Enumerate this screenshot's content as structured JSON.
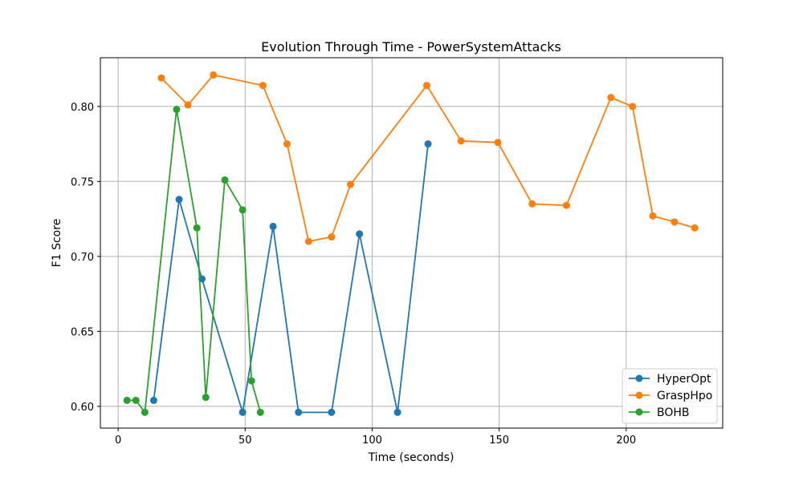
{
  "chart_data": {
    "type": "line",
    "title": "Evolution Through Time - PowerSystemAttacks",
    "xlabel": "Time (seconds)",
    "ylabel": "F1 Score",
    "xlim": [
      -7,
      238
    ],
    "ylim": [
      0.5855,
      0.8325
    ],
    "xticks": [
      0,
      50,
      100,
      150,
      200
    ],
    "yticks": [
      0.6,
      0.65,
      0.7,
      0.75,
      0.8
    ],
    "ytick_labels": [
      "0.60",
      "0.65",
      "0.70",
      "0.75",
      "0.80"
    ],
    "grid": true,
    "legend_position": "lower-right",
    "series": [
      {
        "name": "HyperOpt",
        "color": "#1f77b4",
        "x": [
          14,
          24,
          33,
          49,
          61,
          71,
          84,
          95,
          110,
          122
        ],
        "y": [
          0.604,
          0.738,
          0.685,
          0.596,
          0.72,
          0.596,
          0.596,
          0.715,
          0.596,
          0.775
        ]
      },
      {
        "name": "GraspHpo",
        "color": "#ff7f0e",
        "x": [
          17,
          27.5,
          37.5,
          57,
          66.5,
          75,
          84,
          91.5,
          121.5,
          135,
          149.5,
          163,
          176.5,
          194,
          202.5,
          210.5,
          219,
          227
        ],
        "y": [
          0.819,
          0.801,
          0.821,
          0.814,
          0.775,
          0.71,
          0.713,
          0.748,
          0.814,
          0.777,
          0.776,
          0.735,
          0.734,
          0.806,
          0.8,
          0.727,
          0.723,
          0.719
        ]
      },
      {
        "name": "BOHB",
        "color": "#2ca02c",
        "x": [
          3.5,
          7,
          10.5,
          23,
          31,
          34.5,
          42,
          49,
          52.5,
          56
        ],
        "y": [
          0.604,
          0.604,
          0.596,
          0.798,
          0.719,
          0.606,
          0.751,
          0.731,
          0.617,
          0.596
        ]
      }
    ]
  }
}
